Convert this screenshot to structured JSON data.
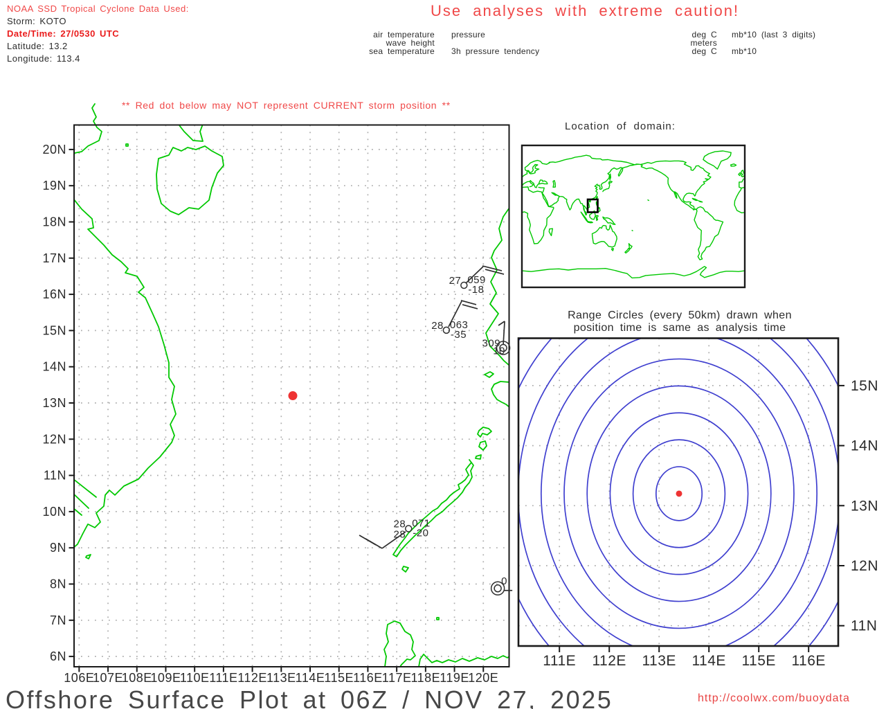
{
  "title_block": {
    "line1": "NOAA SSD Tropical Cyclone Data Used:",
    "line2": "Storm: KOTO",
    "line3": "Date/Time: 27/0530 UTC",
    "line4": "Latitude: 13.2",
    "line5": "Longitude: 113.4"
  },
  "caution_title": "Use analyses with extreme caution!",
  "legend": {
    "air_temperature": "air temperature",
    "pressure": "pressure",
    "wave_height": "wave height",
    "sea_temperature": "sea temperature",
    "tendency_3h": "3h pressure tendency",
    "units_air": "deg C",
    "units_pressure": "mb*10 (last 3 digits)",
    "units_wave": "meters",
    "units_sea": "deg C",
    "units_tendency": "mb*10"
  },
  "warning": "** Red dot below may NOT represent CURRENT storm position **",
  "world_map_title": "Location of domain:",
  "range_plot_titles": {
    "line1": "Range Circles (every 50km) drawn when",
    "line2": "position time is same as analysis time"
  },
  "footer": {
    "title": "Offshore Surface Plot at 06Z / NOV 27, 2025",
    "url": "http://coolwx.com/buoydata"
  },
  "chart_data": {
    "type": "map",
    "storm": {
      "name": "KOTO",
      "lat": 13.2,
      "lon": 113.4,
      "date_time": "27/0530 UTC"
    },
    "main_map": {
      "lon_ticks": [
        106,
        107,
        108,
        109,
        110,
        111,
        112,
        113,
        114,
        115,
        116,
        117,
        118,
        119,
        120
      ],
      "lon_labels": [
        "106E",
        "107E",
        "108E",
        "109E",
        "110E",
        "111E",
        "112E",
        "113E",
        "114E",
        "115E",
        "116E",
        "117E",
        "118E",
        "119E",
        "120E"
      ],
      "lat_ticks": [
        6,
        7,
        8,
        9,
        10,
        11,
        12,
        13,
        14,
        15,
        16,
        17,
        18,
        19,
        20
      ],
      "lat_labels": [
        "6N",
        "7N",
        "8N",
        "9N",
        "10N",
        "11N",
        "12N",
        "13N",
        "14N",
        "15N",
        "16N",
        "17N",
        "18N",
        "19N",
        "20N"
      ],
      "lon_range": [
        105.81,
        120.89
      ],
      "lat_range": [
        5.71,
        20.68
      ]
    },
    "stations": [
      {
        "lon": 119.33,
        "lat": 16.25,
        "symbol": "circle",
        "texts": [
          {
            "pos": "tl",
            "v": "27"
          },
          {
            "pos": "tr",
            "v": "059"
          },
          {
            "pos": "br",
            "v": "-18"
          }
        ],
        "barb": 0
      },
      {
        "lon": 118.72,
        "lat": 15.01,
        "symbol": "circle",
        "texts": [
          {
            "pos": "tl",
            "v": "28"
          },
          {
            "pos": "tr",
            "v": "063"
          },
          {
            "pos": "br",
            "v": "-35"
          }
        ],
        "barb": 1
      },
      {
        "lon": 120.69,
        "lat": 14.52,
        "symbol": "double",
        "texts": [
          {
            "pos": "tl",
            "v": "309"
          },
          {
            "pos": "c2",
            "v": "10"
          }
        ],
        "barb": 2
      },
      {
        "lon": 117.41,
        "lat": 9.53,
        "symbol": "circle",
        "texts": [
          {
            "pos": "tl",
            "v": "28"
          },
          {
            "pos": "bl",
            "v": "28"
          },
          {
            "pos": "tr",
            "v": "071"
          },
          {
            "pos": "br",
            "v": "-20"
          }
        ],
        "barb": 3
      },
      {
        "lon": 120.5,
        "lat": 7.88,
        "symbol": "double",
        "texts": [
          {
            "pos": "t0",
            "v": "0"
          }
        ],
        "barb": 4
      }
    ],
    "range_plot": {
      "center": {
        "lat": 13.2,
        "lon": 113.4
      },
      "interval_km": 50,
      "circles": 9,
      "lon_ticks": [
        111,
        112,
        113,
        114,
        115,
        116
      ],
      "lon_labels": [
        "111E",
        "112E",
        "113E",
        "114E",
        "115E",
        "116E"
      ],
      "lat_ticks": [
        15,
        14,
        13,
        12,
        11
      ],
      "lat_labels": [
        "15N",
        "14N",
        "13N",
        "12N",
        "11N"
      ]
    }
  }
}
